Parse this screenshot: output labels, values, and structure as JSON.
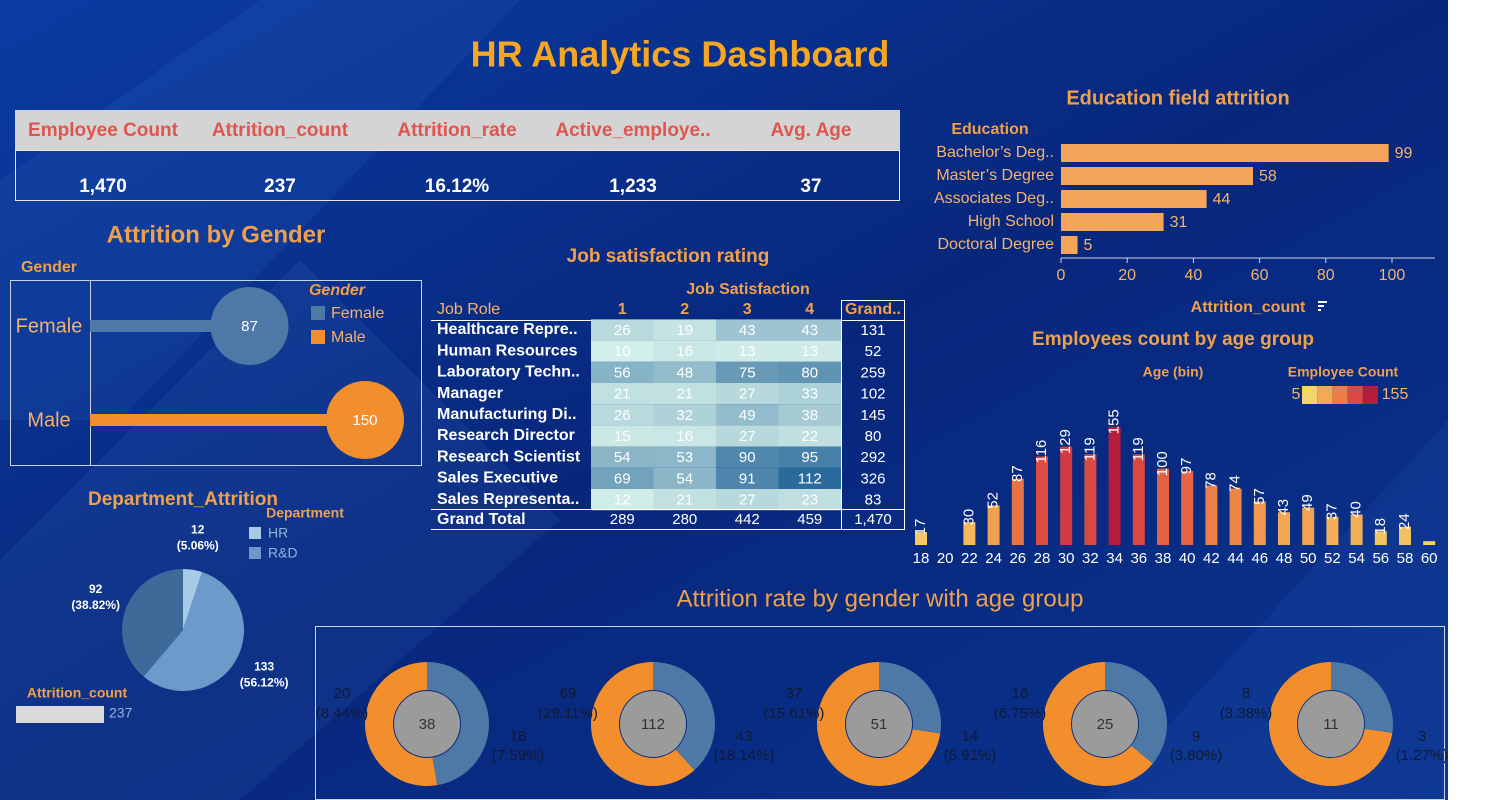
{
  "header": {
    "title": "HR Analytics Dashboard"
  },
  "kpis": {
    "headers": [
      "Employee Count",
      "Attrition_count",
      "Attrition_rate",
      "Active_employe..",
      "Avg. Age"
    ],
    "values": [
      "1,470",
      "237",
      "16.12%",
      "1,233",
      "37"
    ]
  },
  "chart_data": [
    {
      "type": "hbar",
      "title": "Education field attrition",
      "y_label": "Education",
      "x_label": "Attrition_count",
      "categories": [
        "Bachelor’s Deg..",
        "Master’s Degree",
        "Associates Deg..",
        "High School",
        "Doctoral Degree"
      ],
      "values": [
        99,
        58,
        44,
        31,
        5
      ],
      "color": "#f5a55a",
      "xlim": [
        0,
        113
      ],
      "xticks": [
        0,
        20,
        40,
        60,
        80,
        100
      ]
    },
    {
      "type": "lollipop",
      "title": "Attrition by Gender",
      "y_label": "Gender",
      "legend_title": "Gender",
      "categories": [
        "Female",
        "Male"
      ],
      "values": [
        87,
        150
      ],
      "colors": [
        "#4e79a7",
        "#f28e2b"
      ],
      "xlim": [
        0,
        180
      ]
    },
    {
      "type": "pie",
      "title": "Department_Attrition",
      "legend_title": "Department",
      "categories": [
        "HR",
        "R&D",
        null
      ],
      "values": [
        12,
        133,
        92
      ],
      "share_labels": [
        "(5.06%)",
        "(56.12%)",
        "(38.82%)"
      ],
      "colors": [
        "#a6cbe8",
        "#6b9acb",
        "#3e6a9a"
      ],
      "size_legend": {
        "label": "Attrition_count",
        "value": 237
      }
    },
    {
      "type": "heatmap",
      "title": "Job satisfaction rating",
      "column_title": "Job Satisfaction",
      "row_header": "Job Role",
      "total_header": "Grand..",
      "total_label": "Grand Total",
      "categories": [
        "Healthcare Repre..",
        "Human Resources",
        "Laboratory Techn..",
        "Manager",
        "Manufacturing Di..",
        "Research Director",
        "Research Scientist",
        "Sales Executive",
        "Sales Representa.."
      ],
      "columns": [
        1,
        2,
        3,
        4
      ],
      "values": [
        [
          26,
          19,
          43,
          43
        ],
        [
          10,
          16,
          13,
          13
        ],
        [
          56,
          48,
          75,
          80
        ],
        [
          21,
          21,
          27,
          33
        ],
        [
          26,
          32,
          49,
          38
        ],
        [
          15,
          16,
          27,
          22
        ],
        [
          54,
          53,
          90,
          95
        ],
        [
          69,
          54,
          91,
          112
        ],
        [
          12,
          21,
          27,
          23
        ]
      ],
      "row_totals": [
        131,
        52,
        259,
        102,
        145,
        80,
        292,
        326,
        83
      ],
      "column_totals": [
        289,
        280,
        442,
        459
      ],
      "grand_total": {
        "value": 1470,
        "label": "1,470"
      },
      "color_range": [
        "#d3efe9",
        "#2b6a9c"
      ]
    },
    {
      "type": "bar",
      "title": "Employees count by age group",
      "x_label": "Age (bin)",
      "legend_title": "Employee Count",
      "categories": [
        18,
        20,
        22,
        24,
        26,
        28,
        30,
        32,
        34,
        36,
        38,
        40,
        42,
        44,
        46,
        48,
        50,
        52,
        54,
        56,
        58,
        60
      ],
      "values": [
        17,
        null,
        30,
        52,
        87,
        116,
        129,
        119,
        155,
        119,
        100,
        97,
        78,
        74,
        57,
        43,
        49,
        37,
        40,
        18,
        24,
        5
      ],
      "value_labels": [
        "17",
        null,
        "30",
        "52",
        "87",
        "116",
        "129",
        "119",
        "155",
        "119",
        "100",
        "97",
        "78",
        "74",
        "57",
        "43",
        "49",
        "37",
        "40",
        "18",
        "24",
        null
      ],
      "ylim": [
        0,
        160
      ],
      "color_scale": {
        "min": 5,
        "max": 155,
        "colors": [
          "#f6d46c",
          "#f2aa55",
          "#ec7d46",
          "#db4a42",
          "#b81c3c"
        ]
      }
    },
    {
      "type": "donut",
      "title": "Attrition rate by gender with age group",
      "totals": [
        38,
        112,
        51,
        25,
        11
      ],
      "center_color": "#9b9b9b",
      "series": [
        {
          "color": "#f28e2b",
          "values": [
            20,
            69,
            37,
            16,
            8
          ],
          "share_labels": [
            "(8.44%)",
            "(29.11%)",
            "(15.61%)",
            "(6.75%)",
            "(3.38%)"
          ]
        },
        {
          "color": "#4e79a7",
          "values": [
            18,
            43,
            14,
            9,
            3
          ],
          "share_labels": [
            "(7.59%)",
            "(18.14%)",
            "(5.91%)",
            "(3.80%)",
            "(1.27%)"
          ]
        }
      ]
    }
  ]
}
